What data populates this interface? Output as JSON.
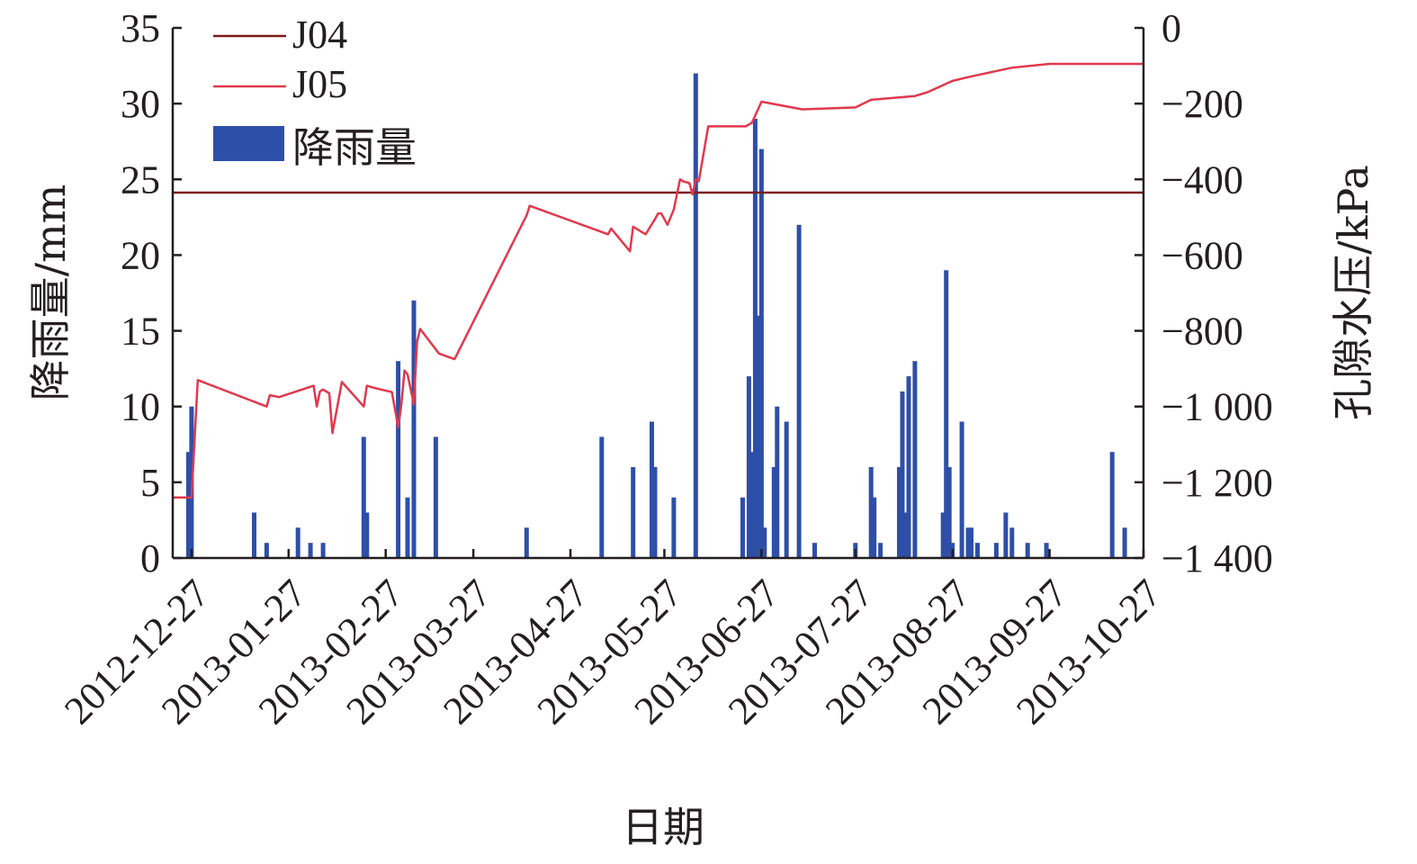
{
  "chart_data": {
    "type": "bar",
    "title": "",
    "xlabel": "日期",
    "ylabel_left": "降雨量/mm",
    "ylabel_right": "孔隙水压/kPa",
    "x_ticks": [
      "2012-12-27",
      "2013-01-27",
      "2013-02-27",
      "2013-03-27",
      "2013-04-27",
      "2013-05-27",
      "2013-06-27",
      "2013-07-27",
      "2013-08-27",
      "2013-09-27",
      "2013-10-27"
    ],
    "xlim": [
      "2012-12-21",
      "2013-10-27"
    ],
    "ylim_left": [
      0,
      35
    ],
    "yticks_left": [
      "0",
      "5",
      "10",
      "15",
      "20",
      "25",
      "30",
      "35"
    ],
    "ylim_right": [
      -1400,
      0
    ],
    "yticks_right": [
      "−1 400",
      "−1 200",
      "−1 000",
      "−800",
      "−600",
      "−400",
      "−200",
      "0"
    ],
    "legend": {
      "position": "top-left",
      "entries": [
        "J04",
        "J05",
        "降雨量"
      ]
    },
    "colors": {
      "J04": "#7b1c1c",
      "J05": "#e0394d",
      "rainfall": "#2e4fa8",
      "axis": "#231f20"
    },
    "series": [
      {
        "name": "降雨量",
        "type": "bar",
        "x": [
          "2012-12-26",
          "2012-12-27",
          "2013-01-16",
          "2013-01-20",
          "2013-01-30",
          "2013-02-03",
          "2013-02-07",
          "2013-02-20",
          "2013-02-21",
          "2013-03-03",
          "2013-03-06",
          "2013-03-08",
          "2013-03-15",
          "2013-04-13",
          "2013-05-07",
          "2013-05-17",
          "2013-05-23",
          "2013-05-24",
          "2013-05-30",
          "2013-06-06",
          "2013-06-21",
          "2013-06-23",
          "2013-06-24",
          "2013-06-25",
          "2013-06-26",
          "2013-06-27",
          "2013-06-28",
          "2013-07-01",
          "2013-07-02",
          "2013-07-05",
          "2013-07-09",
          "2013-07-14",
          "2013-07-27",
          "2013-08-01",
          "2013-08-02",
          "2013-08-04",
          "2013-08-10",
          "2013-08-11",
          "2013-08-12",
          "2013-08-13",
          "2013-08-15",
          "2013-08-24",
          "2013-08-25",
          "2013-08-26",
          "2013-08-27",
          "2013-08-30",
          "2013-09-01",
          "2013-09-02",
          "2013-09-04",
          "2013-09-10",
          "2013-09-13",
          "2013-09-15",
          "2013-09-20",
          "2013-09-26",
          "2013-10-17",
          "2013-10-21"
        ],
        "values": [
          7,
          10,
          3,
          1,
          2,
          1,
          1,
          8,
          3,
          13,
          4,
          17,
          8,
          2,
          8,
          6,
          9,
          6,
          4,
          32,
          4,
          12,
          7,
          29,
          16,
          27,
          2,
          6,
          10,
          9,
          22,
          1,
          1,
          6,
          4,
          1,
          6,
          11,
          3,
          12,
          13,
          3,
          19,
          6,
          1,
          9,
          2,
          2,
          1,
          1,
          3,
          2,
          1,
          1,
          7,
          2
        ]
      },
      {
        "name": "J04",
        "type": "line",
        "x": [
          "2012-12-21",
          "2013-10-27"
        ],
        "values": [
          -435,
          -435
        ]
      },
      {
        "name": "J05",
        "type": "line",
        "x": [
          "2012-12-21",
          "2012-12-27",
          "2012-12-29",
          "2013-01-20",
          "2013-01-21",
          "2013-01-24",
          "2013-02-04",
          "2013-02-05",
          "2013-02-06",
          "2013-02-07",
          "2013-02-09",
          "2013-02-10",
          "2013-02-13",
          "2013-02-20",
          "2013-02-21",
          "2013-02-23",
          "2013-03-01",
          "2013-03-03",
          "2013-03-04",
          "2013-03-05",
          "2013-03-06",
          "2013-03-08",
          "2013-03-09",
          "2013-03-10",
          "2013-03-16",
          "2013-03-21",
          "2013-04-13",
          "2013-04-14",
          "2013-05-09",
          "2013-05-10",
          "2013-05-16",
          "2013-05-17",
          "2013-05-20",
          "2013-05-21",
          "2013-05-24",
          "2013-05-25",
          "2013-05-26",
          "2013-05-28",
          "2013-05-29",
          "2013-05-30",
          "2013-06-01",
          "2013-06-02",
          "2013-06-04",
          "2013-06-05",
          "2013-06-06",
          "2013-06-07",
          "2013-06-10",
          "2013-06-22",
          "2013-06-24",
          "2013-06-27",
          "2013-07-10",
          "2013-07-27",
          "2013-08-01",
          "2013-08-15",
          "2013-08-19",
          "2013-08-27",
          "2013-09-01",
          "2013-09-15",
          "2013-09-27",
          "2013-10-27"
        ],
        "values": [
          -1240,
          -1240,
          -930,
          -1000,
          -970,
          -975,
          -945,
          -1000,
          -960,
          -955,
          -965,
          -1070,
          -935,
          -1000,
          -945,
          -950,
          -962,
          -1055,
          -995,
          -905,
          -915,
          -995,
          -830,
          -795,
          -860,
          -875,
          -495,
          -470,
          -545,
          -530,
          -590,
          -525,
          -540,
          -545,
          -505,
          -490,
          -490,
          -520,
          -500,
          -480,
          -400,
          -405,
          -410,
          -440,
          -400,
          -405,
          -260,
          -260,
          -250,
          -195,
          -215,
          -210,
          -190,
          -180,
          -170,
          -140,
          -130,
          -105,
          -95,
          -95
        ]
      }
    ]
  }
}
